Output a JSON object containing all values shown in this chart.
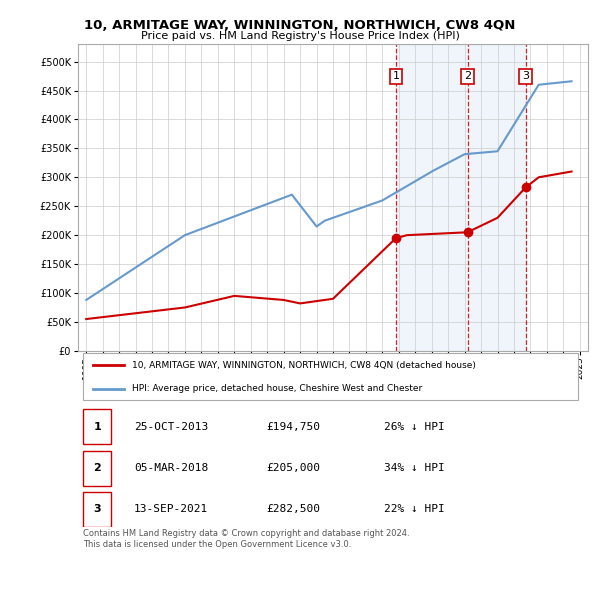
{
  "title": "10, ARMITAGE WAY, WINNINGTON, NORTHWICH, CW8 4QN",
  "subtitle": "Price paid vs. HM Land Registry's House Price Index (HPI)",
  "legend_house": "10, ARMITAGE WAY, WINNINGTON, NORTHWICH, CW8 4QN (detached house)",
  "legend_hpi": "HPI: Average price, detached house, Cheshire West and Chester",
  "footnote": "Contains HM Land Registry data © Crown copyright and database right 2024.\nThis data is licensed under the Open Government Licence v3.0.",
  "transactions": [
    {
      "num": 1,
      "date": "25-OCT-2013",
      "price": "£194,750",
      "pct": "26%",
      "dir": "↓"
    },
    {
      "num": 2,
      "date": "05-MAR-2018",
      "price": "£205,000",
      "pct": "34%",
      "dir": "↓"
    },
    {
      "num": 3,
      "date": "13-SEP-2021",
      "price": "£282,500",
      "pct": "22%",
      "dir": "↓"
    }
  ],
  "transaction_years": [
    2013.82,
    2018.18,
    2021.71
  ],
  "transaction_prices": [
    194750,
    205000,
    282500
  ],
  "vline_color": "#cc0000",
  "dot_color": "#cc0000",
  "house_line_color": "#cc0000",
  "hpi_line_color": "#6699cc",
  "background_color": "#ffffff",
  "plot_bg_color": "#ffffff",
  "grid_color": "#cccccc",
  "ylim": [
    0,
    530000
  ],
  "xlim_start": 1994.5,
  "xlim_end": 2025.5,
  "yticks": [
    0,
    50000,
    100000,
    150000,
    200000,
    250000,
    300000,
    350000,
    400000,
    450000,
    500000
  ],
  "xticks": [
    1995,
    1996,
    1997,
    1998,
    1999,
    2000,
    2001,
    2002,
    2003,
    2004,
    2005,
    2006,
    2007,
    2008,
    2009,
    2010,
    2011,
    2012,
    2013,
    2014,
    2015,
    2016,
    2017,
    2018,
    2019,
    2020,
    2021,
    2022,
    2023,
    2024,
    2025
  ]
}
